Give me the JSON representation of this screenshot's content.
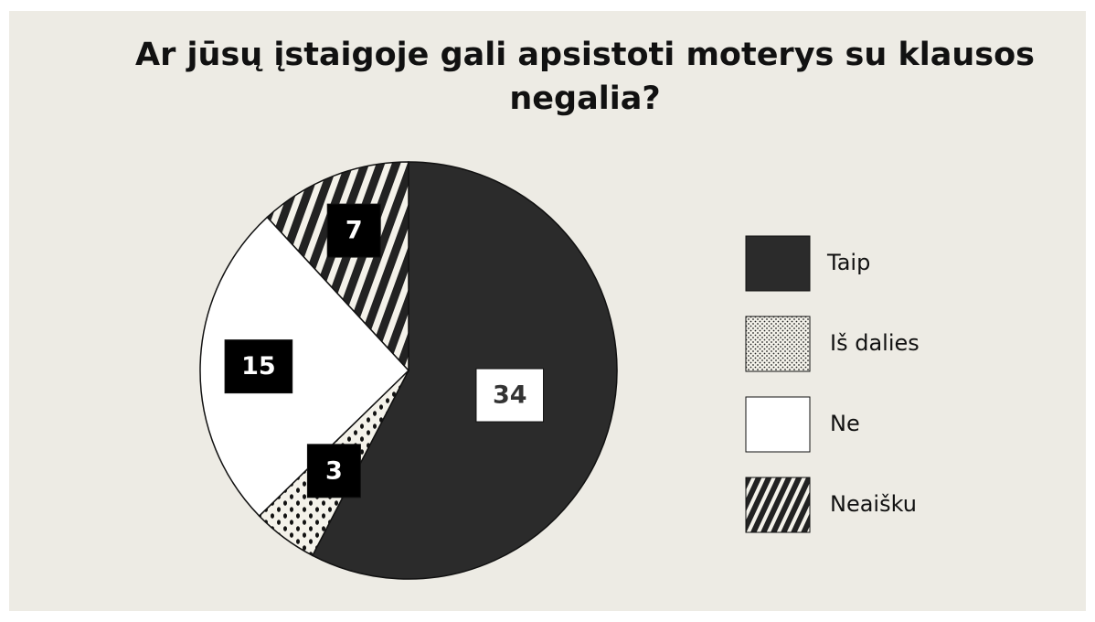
{
  "chart_data": {
    "type": "pie",
    "title": "Ar jūsų įstaigoje gali apsistoti moterys su klausos negalia?",
    "categories": [
      "Taip",
      "Iš dalies",
      "Ne",
      "Neaišku"
    ],
    "values": [
      34,
      3,
      15,
      7
    ],
    "colors": [
      "#2b2b2b",
      "dots",
      "#ffffff",
      "stripes"
    ],
    "legend": "right"
  }
}
